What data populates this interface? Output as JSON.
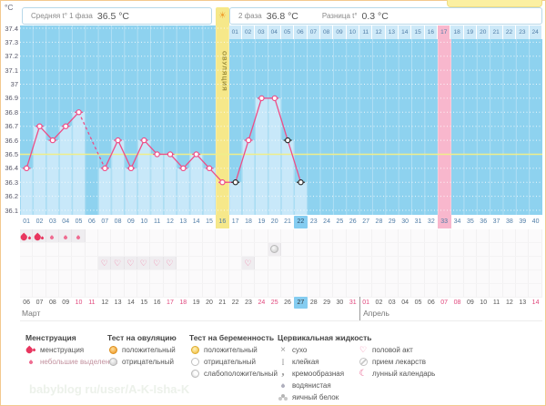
{
  "header": {
    "unit": "°C",
    "phase1_label": "Средняя t° 1 фаза",
    "phase1_value": "36.5 °C",
    "phase2_label": "2 фаза",
    "phase2_value": "36.8 °C",
    "diff_label": "Разница t°",
    "diff_value": "0.3 °C",
    "ovulation_label": "ОВУЛЯЦИЯ"
  },
  "dpo_row": {
    "cells": [
      "01",
      "02",
      "03",
      "04",
      "05",
      "06",
      "07",
      "08",
      "09",
      "10",
      "11",
      "12",
      "13",
      "14",
      "15",
      "16",
      "17",
      "18",
      "19",
      "20",
      "21",
      "22",
      "23",
      "24"
    ],
    "highlighted_cell": "17"
  },
  "chart_data": {
    "type": "line",
    "title": "График базальной температуры",
    "x": [
      1,
      2,
      3,
      4,
      5,
      6,
      7,
      8,
      9,
      10,
      11,
      12,
      13,
      14,
      15,
      16,
      17,
      18,
      19,
      20,
      21,
      22,
      23,
      24,
      25,
      26,
      27,
      28,
      29,
      30,
      31,
      32,
      33,
      34,
      35,
      36,
      37,
      38,
      39,
      40
    ],
    "day_labels": [
      "01",
      "02",
      "03",
      "04",
      "05",
      "06",
      "07",
      "08",
      "09",
      "10",
      "11",
      "12",
      "13",
      "14",
      "15",
      "16",
      "17",
      "18",
      "19",
      "20",
      "21",
      "22",
      "23",
      "24",
      "25",
      "26",
      "27",
      "28",
      "29",
      "30",
      "31",
      "32",
      "33",
      "34",
      "35",
      "36",
      "37",
      "38",
      "39",
      "40"
    ],
    "series": [
      {
        "name": "t°",
        "values": [
          36.4,
          36.7,
          36.6,
          36.7,
          36.8,
          null,
          36.4,
          36.6,
          36.4,
          36.6,
          36.5,
          36.5,
          36.4,
          36.5,
          36.4,
          36.3,
          36.3,
          36.6,
          36.9,
          36.9,
          36.6,
          36.3,
          null,
          null,
          null,
          null,
          null,
          null,
          null,
          null,
          null,
          null,
          null,
          null,
          null,
          null,
          null,
          null,
          null,
          null
        ]
      }
    ],
    "black_marker_days": [
      17,
      21,
      22
    ],
    "missing_days_dashed": [
      6
    ],
    "coverline": 36.5,
    "ovulation_day": 16,
    "expected_period_day": 33,
    "current_day": 22,
    "ylim": [
      36.1,
      37.4
    ],
    "yticks": [
      "37.4",
      "37.3",
      "37.2",
      "37.1",
      "37",
      "36.9",
      "36.8",
      "36.7",
      "36.6",
      "36.5",
      "36.4",
      "36.3",
      "36.2",
      "36.1"
    ],
    "grid": "dotted-horizontal"
  },
  "events": {
    "menstruation_days": [
      1,
      2
    ],
    "spotting_days": [
      3,
      4,
      5
    ],
    "ovulation_test_negative_days": [
      20
    ],
    "intercourse_days": [
      7,
      8,
      9,
      10,
      11,
      12,
      18
    ]
  },
  "dates": {
    "march_label": "Март",
    "april_label": "Апрель",
    "march_dates": [
      "06",
      "07",
      "08",
      "09",
      "10",
      "11",
      "12",
      "13",
      "14",
      "15",
      "16",
      "17",
      "18",
      "19",
      "20",
      "21",
      "22",
      "23",
      "24",
      "25",
      "26",
      "27",
      "28",
      "29",
      "30",
      "31"
    ],
    "april_dates": [
      "01",
      "02",
      "03",
      "04",
      "05",
      "06",
      "07",
      "08",
      "09",
      "10",
      "11",
      "12",
      "13",
      "14"
    ],
    "weekend_dates_march": [
      "10",
      "11",
      "17",
      "18",
      "24",
      "25",
      "31"
    ],
    "weekend_dates_april": [
      "01",
      "07",
      "08",
      "14"
    ],
    "current_date_march": "27"
  },
  "legend": {
    "groups": [
      {
        "title": "Менструация",
        "items": [
          {
            "icon": "menstruation-drop-icon",
            "label": "менструация",
            "faded": false
          },
          {
            "icon": "spotting-drop-icon",
            "label": "небольшие выделения",
            "faded": true
          }
        ]
      },
      {
        "title": "Тест на овуляцию",
        "items": [
          {
            "icon": "ovulation-test-positive-icon",
            "label": "положительный",
            "faded": false
          },
          {
            "icon": "ovulation-test-negative-icon",
            "label": "отрицательный",
            "faded": false
          }
        ]
      },
      {
        "title": "Тест на беременность",
        "items": [
          {
            "icon": "pregnancy-test-positive-icon",
            "label": "положительный",
            "faded": false
          },
          {
            "icon": "pregnancy-test-negative-icon",
            "label": "отрицательный",
            "faded": false
          },
          {
            "icon": "pregnancy-test-weak-icon",
            "label": "слабоположительный",
            "faded": false
          }
        ]
      },
      {
        "title": "Цервикальная жидкость",
        "items": [
          {
            "icon": "dry-icon",
            "label": "сухо",
            "faded": false
          },
          {
            "icon": "sticky-icon",
            "label": "клейкая",
            "faded": false
          },
          {
            "icon": "creamy-icon",
            "label": "кремообразная",
            "faded": false
          },
          {
            "icon": "watery-icon",
            "label": "водянистая",
            "faded": false
          },
          {
            "icon": "eggwhite-icon",
            "label": "яичный белок",
            "faded": false
          }
        ]
      },
      {
        "title": "",
        "items": [
          {
            "icon": "intercourse-heart-icon",
            "label": "половой акт",
            "faded": false
          },
          {
            "icon": "pills-icon",
            "label": "прием лекарств",
            "faded": false
          },
          {
            "icon": "moon-icon",
            "label": "лунный календарь",
            "faded": false
          }
        ]
      }
    ]
  },
  "icons": {
    "sun": "☀",
    "heart": "♡",
    "moon": "☾",
    "dry_cross": "×",
    "sticky_beam": "I",
    "creamy_comma": ","
  },
  "watermark": "babyblog ru/user/A-K-Isha-K",
  "colors": {
    "chart_bg": "#8ed2ef",
    "temp_bar": "#cbe9f9",
    "line": "#ee4d87",
    "marker_black": "#2b2b2b",
    "coverline": "#f0ee8a",
    "ovulation_band": "#f6e88a",
    "expected_period_band": "#f8b7cd",
    "current_day_bg": "#85cdf1",
    "weekend_date": "#e0457b",
    "dpo_cell": "#cde9f8"
  }
}
